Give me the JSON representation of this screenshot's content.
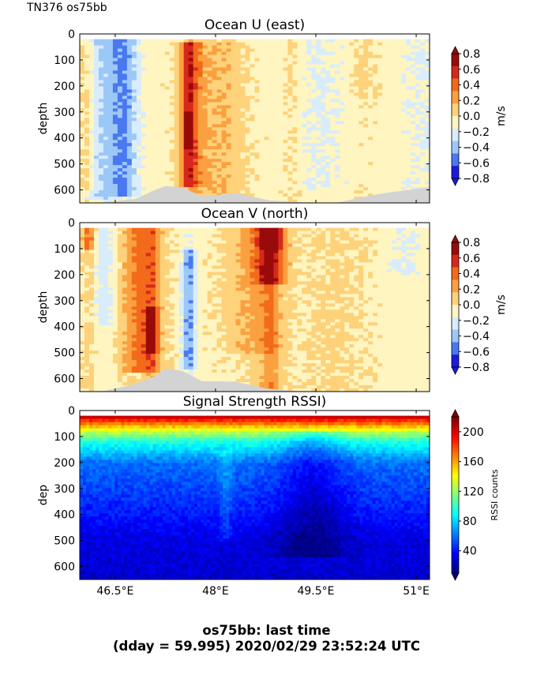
{
  "header": {
    "cruise_label": "TN376 os75bb"
  },
  "footer": {
    "line1": "os75bb: last time",
    "line2": "(dday = 59.995) 2020/02/29 23:52:24 UTC"
  },
  "colors": {
    "land_mask": "#d3d3d3",
    "velocity_levels": [
      "#1a1ae0",
      "#4a78f0",
      "#9cc8f8",
      "#d8ecfc",
      "#fff5c0",
      "#fdd27a",
      "#fba040",
      "#f26a1a",
      "#d8281c",
      "#990a0a"
    ],
    "rssi_colormap": "jet"
  },
  "chart_data": [
    {
      "type": "heatmap",
      "title": "Ocean U (east)",
      "ylabel": "depth",
      "colorbar_label": "m/s",
      "xlim": [
        45.97,
        51.2
      ],
      "ylim": [
        650,
        0
      ],
      "x_ticks": [
        46.5,
        48,
        49.5,
        51
      ],
      "x_tick_labels": [
        "",
        "",
        "",
        ""
      ],
      "y_ticks": [
        0,
        100,
        200,
        300,
        400,
        500,
        600
      ],
      "y_tick_labels": [
        "0",
        "100",
        "200",
        "300",
        "400",
        "500",
        "600"
      ],
      "colorbar_ticks": [
        0.8,
        0.6,
        0.4,
        0.2,
        0.0,
        -0.2,
        -0.4,
        -0.6,
        -0.8
      ],
      "colorbar_tick_labels": [
        "0.8",
        "0.6",
        "0.4",
        "0.2",
        "0.0",
        "−0.2",
        "−0.4",
        "−0.6",
        "−0.8"
      ],
      "value_range": [
        -0.8,
        0.8
      ],
      "features": [
        {
          "lon": 46.62,
          "width": 0.22,
          "depth_top": 20,
          "depth_bottom": 620,
          "value": -0.45
        },
        {
          "lon": 46.25,
          "width": 0.22,
          "depth_top": 20,
          "depth_bottom": 640,
          "value": -0.25
        },
        {
          "lon": 47.62,
          "width": 0.17,
          "depth_top": 30,
          "depth_bottom": 590,
          "value": 0.5
        },
        {
          "lon": 47.6,
          "width": 0.06,
          "depth_top": 300,
          "depth_bottom": 440,
          "value": 0.72
        },
        {
          "lon": 48.05,
          "width": 0.38,
          "depth_top": 30,
          "depth_bottom": 620,
          "value": 0.22
        },
        {
          "lon": 46.08,
          "width": 0.12,
          "depth_top": 30,
          "depth_bottom": 600,
          "value": 0.2
        },
        {
          "lon": 49.15,
          "width": 0.15,
          "depth_top": 20,
          "depth_bottom": 620,
          "value": 0.1
        },
        {
          "lon": 49.55,
          "width": 0.45,
          "depth_top": 20,
          "depth_bottom": 600,
          "value": -0.12
        },
        {
          "lon": 50.2,
          "width": 0.22,
          "depth_top": 20,
          "depth_bottom": 250,
          "value": 0.12
        },
        {
          "lon": 51.05,
          "width": 0.35,
          "depth_top": 20,
          "depth_bottom": 600,
          "value": -0.1
        }
      ],
      "bottom_depth": [
        [
          45.97,
          650
        ],
        [
          46.3,
          648
        ],
        [
          46.8,
          635
        ],
        [
          47.1,
          600
        ],
        [
          47.25,
          585
        ],
        [
          47.5,
          590
        ],
        [
          47.8,
          625
        ],
        [
          48.3,
          612
        ],
        [
          48.8,
          640
        ],
        [
          49.3,
          648
        ],
        [
          49.8,
          650
        ],
        [
          50.35,
          620
        ],
        [
          50.6,
          610
        ],
        [
          51.2,
          590
        ]
      ]
    },
    {
      "type": "heatmap",
      "title": "Ocean V (north)",
      "ylabel": "depth",
      "colorbar_label": "m/s",
      "xlim": [
        45.97,
        51.2
      ],
      "ylim": [
        650,
        0
      ],
      "x_ticks": [
        46.5,
        48,
        49.5,
        51
      ],
      "x_tick_labels": [
        "",
        "",
        "",
        ""
      ],
      "y_ticks": [
        0,
        100,
        200,
        300,
        400,
        500,
        600
      ],
      "y_tick_labels": [
        "0",
        "100",
        "200",
        "300",
        "400",
        "500",
        "600"
      ],
      "colorbar_ticks": [
        0.8,
        0.6,
        0.4,
        0.2,
        0.0,
        -0.2,
        -0.4,
        -0.6,
        -0.8
      ],
      "colorbar_tick_labels": [
        "0.8",
        "0.6",
        "0.4",
        "0.2",
        "0.0",
        "−0.2",
        "−0.4",
        "−0.6",
        "−0.8"
      ],
      "value_range": [
        -0.8,
        0.8
      ],
      "features": [
        {
          "lon": 46.9,
          "width": 0.3,
          "depth_top": 20,
          "depth_bottom": 580,
          "value": 0.45
        },
        {
          "lon": 47.05,
          "width": 0.08,
          "depth_top": 320,
          "depth_bottom": 500,
          "value": 0.7
        },
        {
          "lon": 47.6,
          "width": 0.1,
          "depth_top": 100,
          "depth_bottom": 560,
          "value": -0.45
        },
        {
          "lon": 46.35,
          "width": 0.15,
          "depth_top": 20,
          "depth_bottom": 400,
          "value": -0.2
        },
        {
          "lon": 46.1,
          "width": 0.1,
          "depth_top": 20,
          "depth_bottom": 100,
          "value": 0.45
        },
        {
          "lon": 48.5,
          "width": 0.4,
          "depth_top": 20,
          "depth_bottom": 500,
          "value": 0.22
        },
        {
          "lon": 48.82,
          "width": 0.25,
          "depth_top": 20,
          "depth_bottom": 240,
          "value": 0.55
        },
        {
          "lon": 48.82,
          "width": 0.12,
          "depth_top": 20,
          "depth_bottom": 100,
          "value": 0.78
        },
        {
          "lon": 49.8,
          "width": 0.5,
          "depth_top": 20,
          "depth_bottom": 650,
          "value": 0.1
        },
        {
          "lon": 50.85,
          "width": 0.3,
          "depth_top": 20,
          "depth_bottom": 200,
          "value": -0.12
        }
      ],
      "bottom_depth": [
        [
          45.97,
          650
        ],
        [
          46.3,
          650
        ],
        [
          46.8,
          620
        ],
        [
          47.1,
          590
        ],
        [
          47.25,
          560
        ],
        [
          47.5,
          570
        ],
        [
          47.8,
          610
        ],
        [
          48.3,
          612
        ],
        [
          48.8,
          640
        ],
        [
          49.3,
          650
        ],
        [
          51.2,
          650
        ]
      ]
    },
    {
      "type": "heatmap",
      "title": "Signal Strength RSSI)",
      "ylabel": "dep",
      "colorbar_label": "RSSI counts",
      "xlim": [
        45.97,
        51.2
      ],
      "ylim": [
        650,
        0
      ],
      "x_ticks": [
        46.5,
        48,
        49.5,
        51
      ],
      "x_tick_labels": [
        "46.5°E",
        "48°E",
        "49.5°E",
        "51°E"
      ],
      "y_ticks": [
        0,
        100,
        200,
        300,
        400,
        500,
        600
      ],
      "y_tick_labels": [
        "0",
        "100",
        "200",
        "300",
        "400",
        "500",
        "600"
      ],
      "colorbar_ticks": [
        200,
        160,
        120,
        80,
        40
      ],
      "colorbar_tick_labels": [
        "200",
        "160",
        "120",
        "80",
        "40"
      ],
      "value_range": [
        10,
        220
      ],
      "depth_profile": [
        [
          20,
          210
        ],
        [
          50,
          170
        ],
        [
          80,
          130
        ],
        [
          120,
          95
        ],
        [
          200,
          60
        ],
        [
          300,
          50
        ],
        [
          420,
          38
        ],
        [
          500,
          30
        ],
        [
          650,
          26
        ]
      ],
      "features": [
        {
          "lon": 49.45,
          "width": 0.5,
          "depth_top": 80,
          "depth_bottom": 560,
          "value": -20
        },
        {
          "lon": 48.15,
          "width": 0.1,
          "depth_top": 150,
          "depth_bottom": 500,
          "value": 12
        }
      ]
    }
  ]
}
